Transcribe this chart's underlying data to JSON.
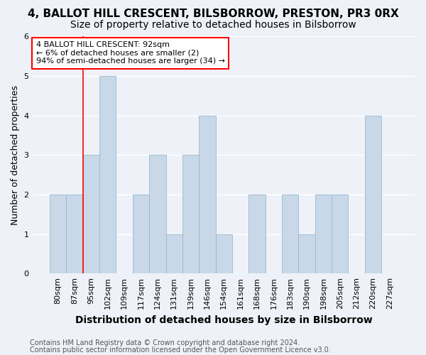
{
  "title": "4, BALLOT HILL CRESCENT, BILSBORROW, PRESTON, PR3 0RX",
  "subtitle": "Size of property relative to detached houses in Bilsborrow",
  "xlabel": "Distribution of detached houses by size in Bilsborrow",
  "ylabel": "Number of detached properties",
  "footer_line1": "Contains HM Land Registry data © Crown copyright and database right 2024.",
  "footer_line2": "Contains public sector information licensed under the Open Government Licence v3.0.",
  "categories": [
    "80sqm",
    "87sqm",
    "95sqm",
    "102sqm",
    "109sqm",
    "117sqm",
    "124sqm",
    "131sqm",
    "139sqm",
    "146sqm",
    "154sqm",
    "161sqm",
    "168sqm",
    "176sqm",
    "183sqm",
    "190sqm",
    "198sqm",
    "205sqm",
    "212sqm",
    "220sqm",
    "227sqm"
  ],
  "values": [
    2,
    2,
    3,
    5,
    0,
    2,
    3,
    1,
    3,
    4,
    1,
    0,
    2,
    0,
    2,
    1,
    2,
    2,
    0,
    4,
    0
  ],
  "bar_color": "#c8d8e8",
  "bar_edge_color": "#9ab8d0",
  "annotation_text": "4 BALLOT HILL CRESCENT: 92sqm\n← 6% of detached houses are smaller (2)\n94% of semi-detached houses are larger (34) →",
  "annotation_box_color": "white",
  "annotation_box_edgecolor": "red",
  "vline_color": "red",
  "vline_x_index": 2,
  "ylim": [
    0,
    6
  ],
  "yticks": [
    0,
    1,
    2,
    3,
    4,
    5,
    6
  ],
  "background_color": "#eef2f8",
  "grid_color": "white",
  "title_fontsize": 11,
  "subtitle_fontsize": 10,
  "ylabel_fontsize": 9,
  "xlabel_fontsize": 10,
  "tick_fontsize": 8,
  "annotation_fontsize": 8,
  "footer_fontsize": 7
}
